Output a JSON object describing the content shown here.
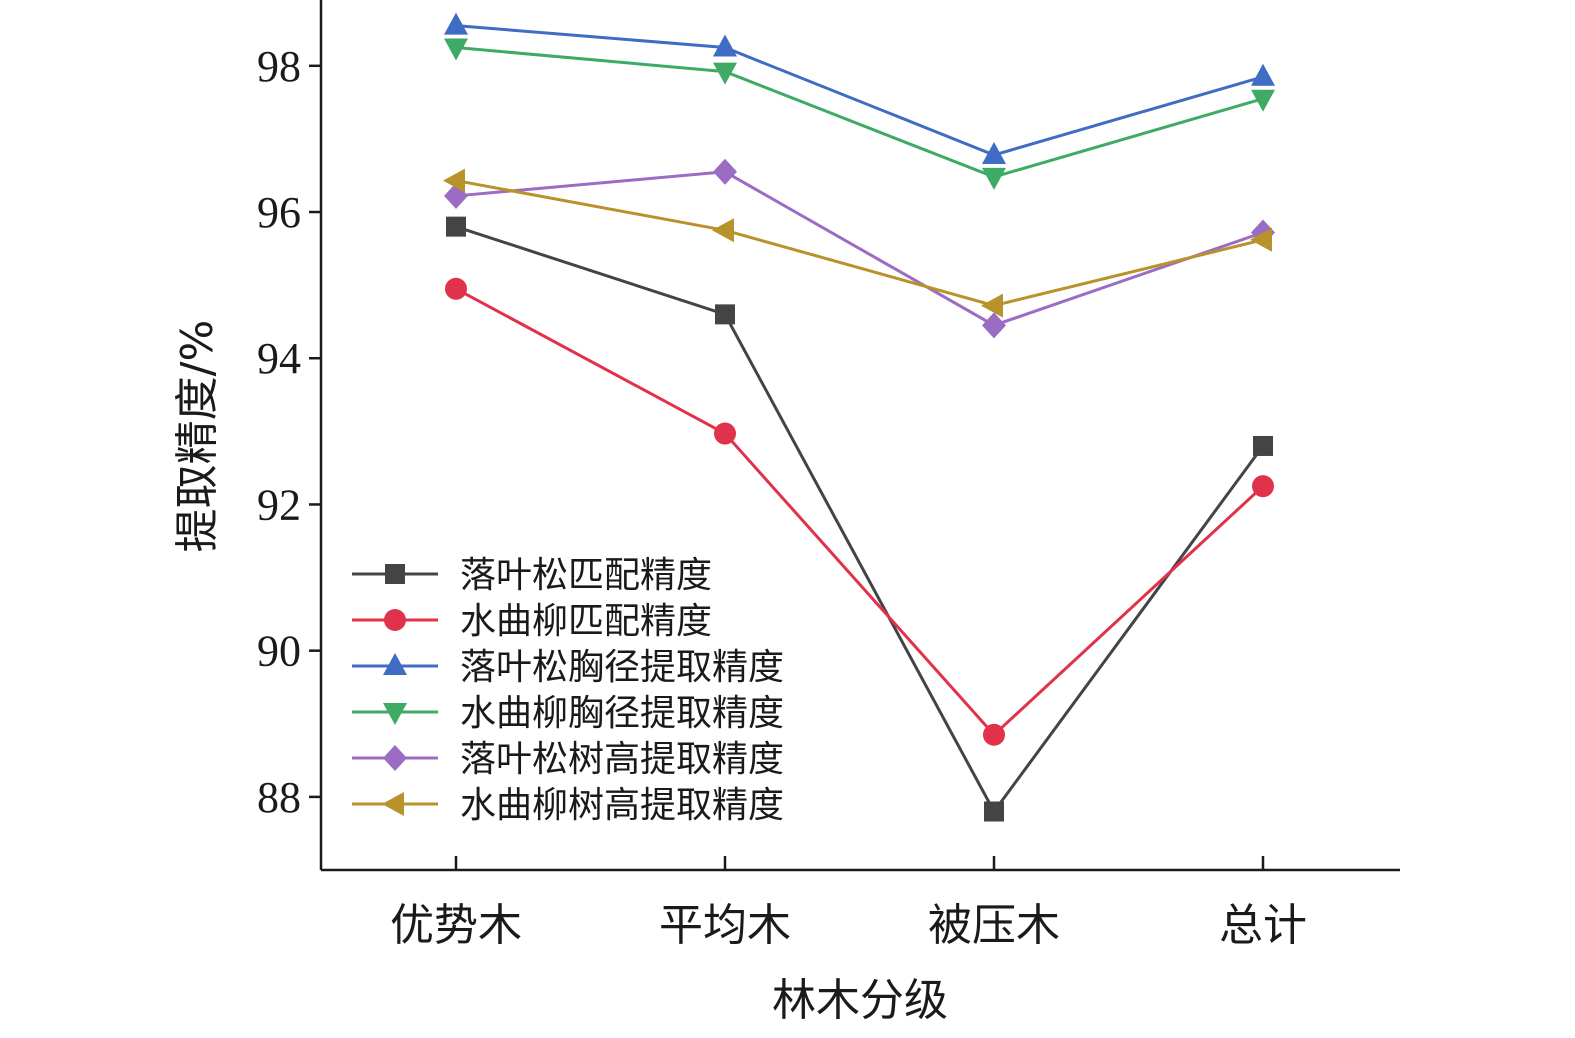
{
  "chart_data": {
    "type": "line",
    "title": "",
    "xlabel": "林木分级",
    "ylabel": "提取精度/%",
    "categories": [
      "优势木",
      "平均木",
      "被压木",
      "总计"
    ],
    "ylim": [
      87.0,
      98.9
    ],
    "yticks": [
      88,
      90,
      92,
      94,
      96,
      98
    ],
    "grid": false,
    "legend_position": "bottom-left",
    "series": [
      {
        "name": "落叶松匹配精度",
        "color": "#444444",
        "marker": "square",
        "values": [
          95.8,
          94.6,
          87.8,
          92.8
        ]
      },
      {
        "name": "水曲柳匹配精度",
        "color": "#e0324a",
        "marker": "circle",
        "values": [
          94.95,
          92.97,
          88.85,
          92.25
        ]
      },
      {
        "name": "落叶松胸径提取精度",
        "color": "#3f6cc4",
        "marker": "triangle-up",
        "values": [
          98.55,
          98.25,
          96.78,
          97.85
        ]
      },
      {
        "name": "水曲柳胸径提取精度",
        "color": "#3eaa66",
        "marker": "triangle-down",
        "values": [
          98.25,
          97.92,
          96.48,
          97.55
        ]
      },
      {
        "name": "落叶松树高提取精度",
        "color": "#9a6cc4",
        "marker": "diamond",
        "values": [
          96.22,
          96.55,
          94.45,
          95.72
        ]
      },
      {
        "name": "水曲柳树高提取精度",
        "color": "#b8922a",
        "marker": "triangle-left",
        "values": [
          96.43,
          95.75,
          94.72,
          95.62
        ]
      }
    ]
  }
}
